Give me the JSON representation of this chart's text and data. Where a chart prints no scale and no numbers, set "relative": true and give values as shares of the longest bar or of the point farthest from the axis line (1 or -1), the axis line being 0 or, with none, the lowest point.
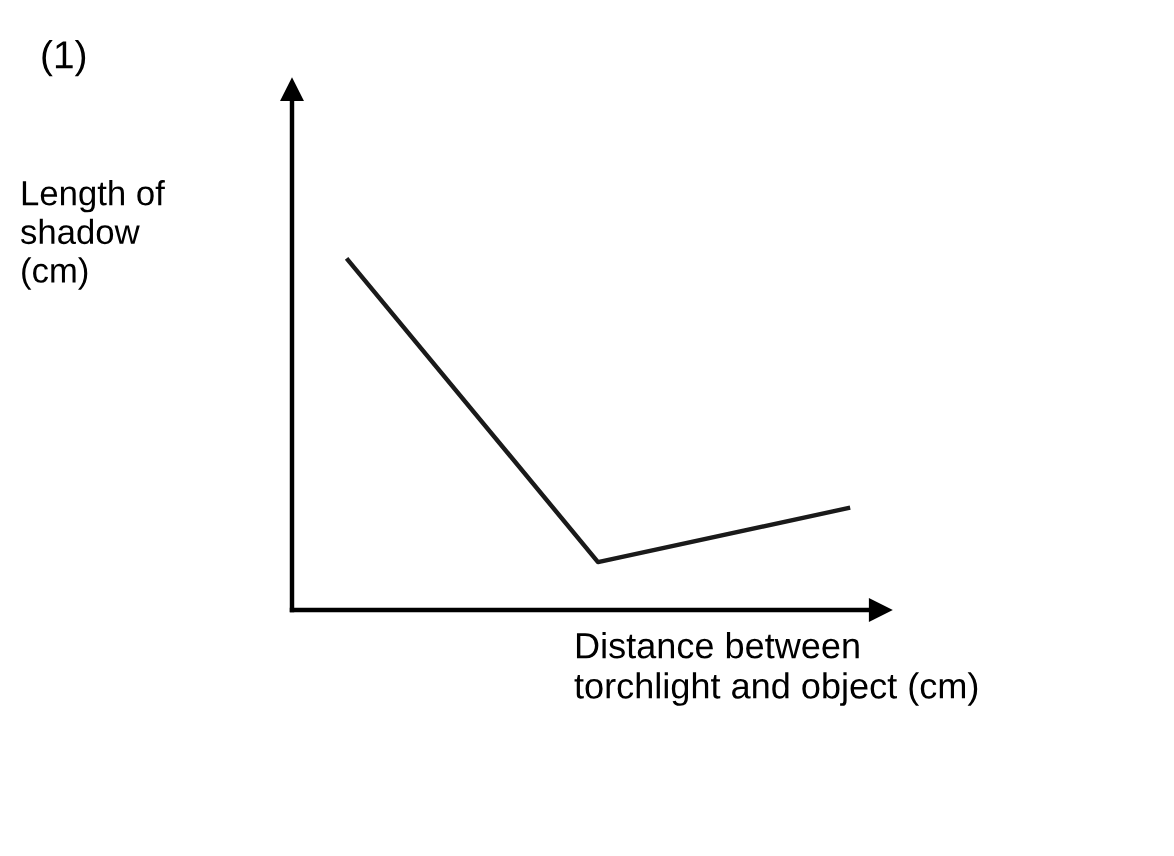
{
  "chart_data": {
    "type": "line",
    "relative": true,
    "categories": [
      null,
      null,
      null
    ],
    "values": [
      1,
      0.137,
      0.291
    ],
    "color": "#1a1a1a",
    "ylabel": "Length of\nshadow\n(cm)",
    "xlabel": "Distance between\ntorchlight and object (cm)",
    "annotations": [
      "(1)"
    ],
    "marker": "none",
    "line_style": "solid"
  }
}
